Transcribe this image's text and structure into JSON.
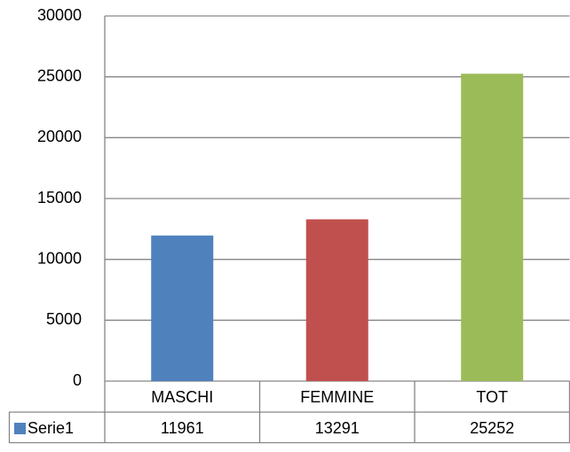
{
  "chart_data": {
    "type": "bar",
    "categories": [
      "MASCHI",
      "FEMMINE",
      "TOT"
    ],
    "series": [
      {
        "name": "Serie1",
        "color": "#4f81bd",
        "point_colors": [
          "#4f81bd",
          "#c0504d",
          "#9bbb59"
        ],
        "values": [
          11961,
          13291,
          25252
        ]
      }
    ],
    "ylim": [
      0,
      30000
    ],
    "yticks": [
      0,
      5000,
      10000,
      15000,
      20000,
      25000,
      30000
    ],
    "grid": true,
    "data_table": true
  }
}
